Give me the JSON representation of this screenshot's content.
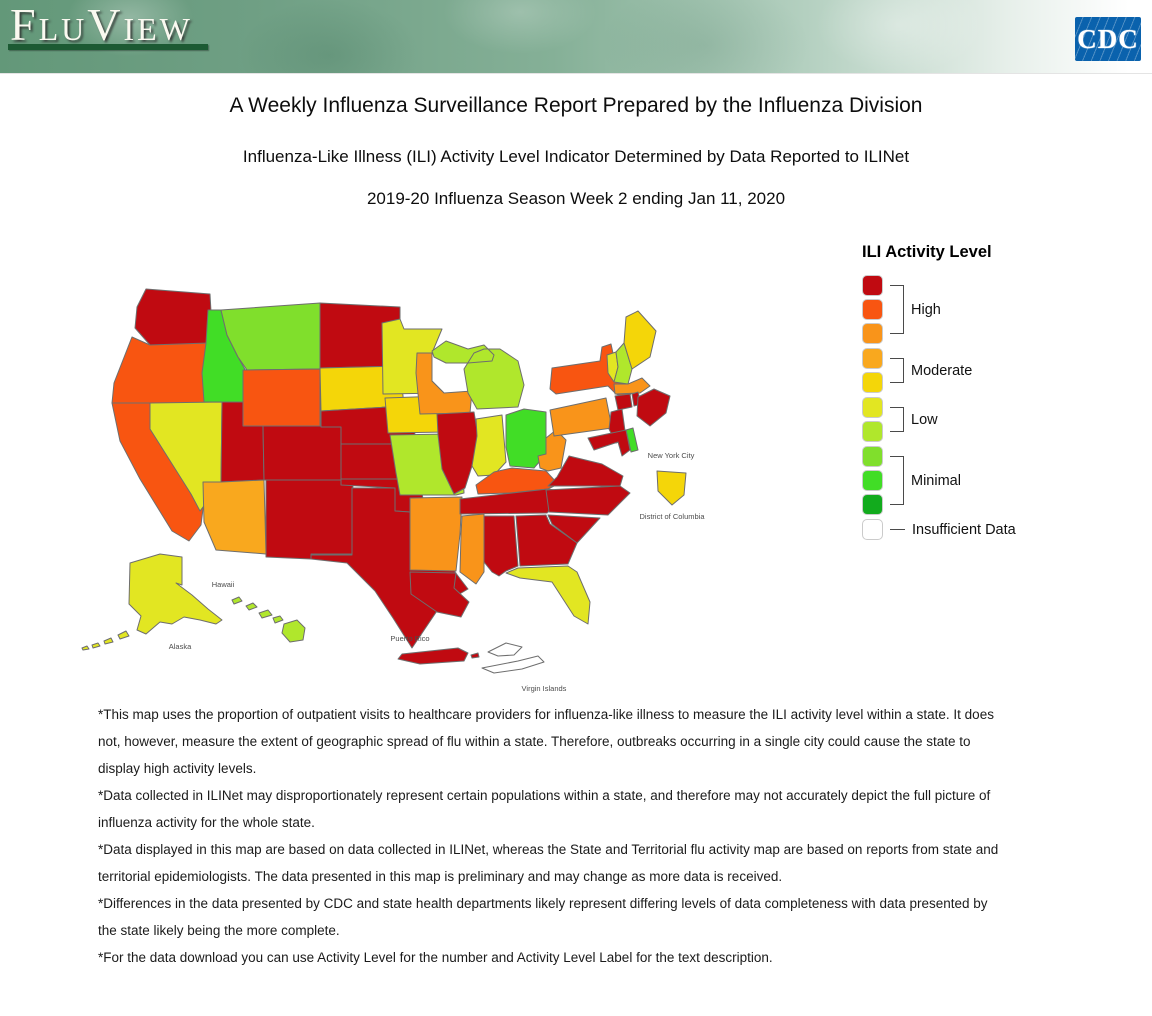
{
  "header": {
    "brand": "FluView",
    "cdc_logo": "CDC"
  },
  "titles": {
    "main": "A Weekly Influenza Surveillance Report Prepared by the Influenza Division",
    "subtitle": "Influenza-Like Illness (ILI) Activity Level Indicator Determined by Data Reported to ILINet",
    "season": "2019-20 Influenza Season Week 2 ending Jan 11, 2020"
  },
  "legend": {
    "title": "ILI Activity Level",
    "groups": [
      {
        "label": "High",
        "levels": [
          10,
          9,
          8
        ]
      },
      {
        "label": "Moderate",
        "levels": [
          7,
          6
        ]
      },
      {
        "label": "Low",
        "levels": [
          5,
          4
        ]
      },
      {
        "label": "Minimal",
        "levels": [
          3,
          2,
          1
        ]
      }
    ],
    "insufficient_label": "Insufficient Data"
  },
  "map_labels": {
    "new_york_city": "New York City",
    "district_of_columbia": "District of Columbia",
    "hawaii": "Hawaii",
    "alaska": "Alaska",
    "puerto_rico": "Puerto Rico",
    "virgin_islands": "Virgin Islands"
  },
  "footnotes": [
    "*This map uses the proportion of outpatient visits to healthcare providers for influenza-like illness to measure the ILI activity level within a state. It does not, however, measure the extent of geographic spread of flu within a state. Therefore, outbreaks occurring in a single city could cause the state to display high activity levels.",
    "*Data collected in ILINet may disproportionately represent certain populations within a state, and therefore may not accurately depict the full picture of influenza activity for the whole state.",
    "*Data displayed in this map are based on data collected in ILINet, whereas the State and Territorial flu activity map are based on reports from state and territorial epidemiologists. The data presented in this map is preliminary and may change as more data is received.",
    "*Differences in the data presented by CDC and state health departments likely represent differing levels of data completeness with data presented by the state likely being the more complete.",
    "*For the data download you can use Activity Level for the number and Activity Level Label for the text description."
  ],
  "chart_data": {
    "type": "heatmap",
    "subtype": "us_choropleth",
    "title": "Influenza-Like Illness (ILI) Activity Level Indicator Determined by Data Reported to ILINet",
    "period": "2019-20 Influenza Season Week 2 ending Jan 11, 2020",
    "scale": {
      "colors": {
        "10": "#c00a11",
        "9": "#f85511",
        "8": "#f9941a",
        "7": "#f9a81e",
        "6": "#f4d609",
        "5": "#e2e622",
        "4": "#b0e72c",
        "3": "#80df2c",
        "2": "#41dd26",
        "1": "#12ab1d"
      },
      "insufficient": {
        "label": "Insufficient Data",
        "color": "#ffffff"
      },
      "category_ranges": {
        "High": [
          8,
          10
        ],
        "Moderate": [
          6,
          7
        ],
        "Low": [
          4,
          5
        ],
        "Minimal": [
          1,
          3
        ]
      }
    },
    "regions": [
      {
        "id": "WA",
        "name": "Washington",
        "level": 10,
        "label": "High"
      },
      {
        "id": "OR",
        "name": "Oregon",
        "level": 9,
        "label": "High"
      },
      {
        "id": "CA",
        "name": "California",
        "level": 9,
        "label": "High"
      },
      {
        "id": "NV",
        "name": "Nevada",
        "level": 5,
        "label": "Low"
      },
      {
        "id": "ID",
        "name": "Idaho",
        "level": 2,
        "label": "Minimal"
      },
      {
        "id": "MT",
        "name": "Montana",
        "level": 3,
        "label": "Minimal"
      },
      {
        "id": "WY",
        "name": "Wyoming",
        "level": 9,
        "label": "High"
      },
      {
        "id": "UT",
        "name": "Utah",
        "level": 10,
        "label": "High"
      },
      {
        "id": "AZ",
        "name": "Arizona",
        "level": 7,
        "label": "Moderate"
      },
      {
        "id": "CO",
        "name": "Colorado",
        "level": 10,
        "label": "High"
      },
      {
        "id": "NM",
        "name": "New Mexico",
        "level": 10,
        "label": "High"
      },
      {
        "id": "ND",
        "name": "North Dakota",
        "level": 10,
        "label": "High"
      },
      {
        "id": "SD",
        "name": "South Dakota",
        "level": 6,
        "label": "Moderate"
      },
      {
        "id": "NE",
        "name": "Nebraska",
        "level": 10,
        "label": "High"
      },
      {
        "id": "KS",
        "name": "Kansas",
        "level": 10,
        "label": "High"
      },
      {
        "id": "OK",
        "name": "Oklahoma",
        "level": 10,
        "label": "High"
      },
      {
        "id": "TX",
        "name": "Texas",
        "level": 10,
        "label": "High"
      },
      {
        "id": "MN",
        "name": "Minnesota",
        "level": 5,
        "label": "Low"
      },
      {
        "id": "IA",
        "name": "Iowa",
        "level": 6,
        "label": "Moderate"
      },
      {
        "id": "MO",
        "name": "Missouri",
        "level": 4,
        "label": "Low"
      },
      {
        "id": "AR",
        "name": "Arkansas",
        "level": 8,
        "label": "High"
      },
      {
        "id": "LA",
        "name": "Louisiana",
        "level": 10,
        "label": "High"
      },
      {
        "id": "MS",
        "name": "Mississippi",
        "level": 8,
        "label": "High"
      },
      {
        "id": "WI",
        "name": "Wisconsin",
        "level": 8,
        "label": "High"
      },
      {
        "id": "IL",
        "name": "Illinois",
        "level": 10,
        "label": "High"
      },
      {
        "id": "MI",
        "name": "Michigan",
        "level": 4,
        "label": "Low"
      },
      {
        "id": "IN",
        "name": "Indiana",
        "level": 5,
        "label": "Low"
      },
      {
        "id": "OH",
        "name": "Ohio",
        "level": 2,
        "label": "Minimal"
      },
      {
        "id": "KY",
        "name": "Kentucky",
        "level": 9,
        "label": "High"
      },
      {
        "id": "TN",
        "name": "Tennessee",
        "level": 10,
        "label": "High"
      },
      {
        "id": "AL",
        "name": "Alabama",
        "level": 10,
        "label": "High"
      },
      {
        "id": "GA",
        "name": "Georgia",
        "level": 10,
        "label": "High"
      },
      {
        "id": "FL",
        "name": "Florida",
        "level": 5,
        "label": "Low"
      },
      {
        "id": "SC",
        "name": "South Carolina",
        "level": 10,
        "label": "High"
      },
      {
        "id": "NC",
        "name": "North Carolina",
        "level": 10,
        "label": "High"
      },
      {
        "id": "VA",
        "name": "Virginia",
        "level": 10,
        "label": "High"
      },
      {
        "id": "WV",
        "name": "West Virginia",
        "level": 8,
        "label": "High"
      },
      {
        "id": "MD",
        "name": "Maryland",
        "level": 10,
        "label": "High"
      },
      {
        "id": "DE",
        "name": "Delaware",
        "level": 2,
        "label": "Minimal"
      },
      {
        "id": "PA",
        "name": "Pennsylvania",
        "level": 8,
        "label": "High"
      },
      {
        "id": "NJ",
        "name": "New Jersey",
        "level": 10,
        "label": "High"
      },
      {
        "id": "NY",
        "name": "New York",
        "level": 9,
        "label": "High"
      },
      {
        "id": "CT",
        "name": "Connecticut",
        "level": 10,
        "label": "High"
      },
      {
        "id": "RI",
        "name": "Rhode Island",
        "level": 10,
        "label": "High"
      },
      {
        "id": "MA",
        "name": "Massachusetts",
        "level": 8,
        "label": "High"
      },
      {
        "id": "VT",
        "name": "Vermont",
        "level": 5,
        "label": "Low"
      },
      {
        "id": "NH",
        "name": "New Hampshire",
        "level": 4,
        "label": "Low"
      },
      {
        "id": "ME",
        "name": "Maine",
        "level": 6,
        "label": "Moderate"
      },
      {
        "id": "AK",
        "name": "Alaska",
        "level": 5,
        "label": "Low"
      },
      {
        "id": "HI",
        "name": "Hawaii",
        "level": 4,
        "label": "Low"
      },
      {
        "id": "NYC",
        "name": "New York City",
        "level": 10,
        "label": "High"
      },
      {
        "id": "DC",
        "name": "District of Columbia",
        "level": 6,
        "label": "Moderate"
      },
      {
        "id": "PR",
        "name": "Puerto Rico",
        "level": 10,
        "label": "High"
      },
      {
        "id": "VI",
        "name": "Virgin Islands",
        "level": null,
        "label": "Insufficient Data"
      }
    ]
  }
}
